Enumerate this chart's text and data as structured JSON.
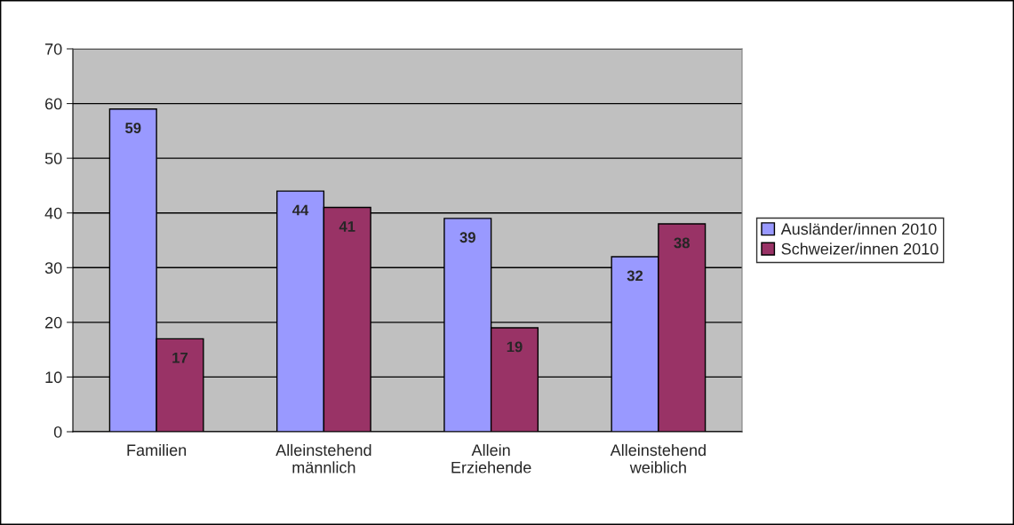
{
  "chart_data": {
    "type": "bar",
    "categories": [
      "Familien",
      "Alleinstehend\nmännlich",
      "Allein\nErziehende",
      "Alleinstehend\nweiblich"
    ],
    "series": [
      {
        "name": "Ausländer/innen 2010",
        "color": "#9999ff",
        "values": [
          59,
          44,
          39,
          32
        ]
      },
      {
        "name": "Schweizer/innen 2010",
        "color": "#993366",
        "values": [
          17,
          41,
          19,
          38
        ]
      }
    ],
    "ylim": [
      0,
      70
    ],
    "yticks": [
      0,
      10,
      20,
      30,
      40,
      50,
      60,
      70
    ],
    "grid": "y",
    "legend": "right",
    "data_labels": true
  }
}
